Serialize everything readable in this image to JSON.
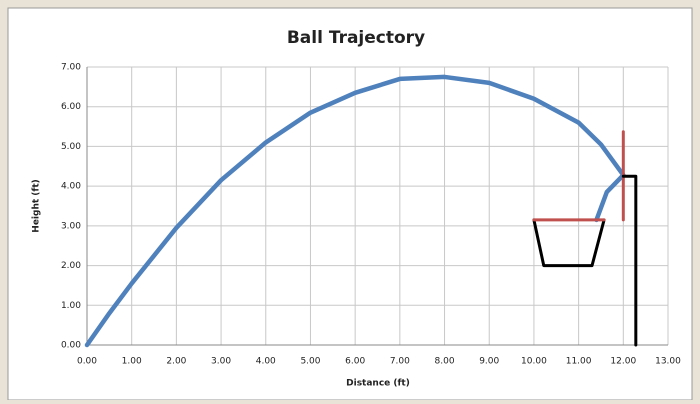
{
  "chart_data": {
    "type": "scatter",
    "title": "Ball Trajectory",
    "x_label": "Distance (ft)",
    "y_label": "Height (ft)",
    "xlim": [
      0,
      13
    ],
    "ylim": [
      0,
      7
    ],
    "grid": true,
    "xticks": [
      {
        "value": 0,
        "label": "0.00"
      },
      {
        "value": 1,
        "label": "1.00"
      },
      {
        "value": 2,
        "label": "2.00"
      },
      {
        "value": 3,
        "label": "3.00"
      },
      {
        "value": 4,
        "label": "4.00"
      },
      {
        "value": 5,
        "label": "5.00"
      },
      {
        "value": 6,
        "label": "6.00"
      },
      {
        "value": 7,
        "label": "7.00"
      },
      {
        "value": 8,
        "label": "8.00"
      },
      {
        "value": 9,
        "label": "9.00"
      },
      {
        "value": 10,
        "label": "10.00"
      },
      {
        "value": 11,
        "label": "11.00"
      },
      {
        "value": 12,
        "label": "12.00"
      },
      {
        "value": 13,
        "label": "13.00"
      }
    ],
    "yticks": [
      {
        "value": 0,
        "label": "0.00"
      },
      {
        "value": 1,
        "label": "1.00"
      },
      {
        "value": 2,
        "label": "2.00"
      },
      {
        "value": 3,
        "label": "3.00"
      },
      {
        "value": 4,
        "label": "4.00"
      },
      {
        "value": 5,
        "label": "5.00"
      },
      {
        "value": 6,
        "label": "6.00"
      },
      {
        "value": 7,
        "label": "7.00"
      }
    ],
    "series": [
      {
        "color": "#4f81bd",
        "x": [
          0,
          0.5,
          1,
          2,
          3,
          4,
          5,
          6,
          7,
          8,
          9,
          10,
          11,
          11.5,
          12,
          11.63,
          11.4
        ],
        "values": [
          0,
          0.8,
          1.55,
          2.95,
          4.15,
          5.1,
          5.85,
          6.35,
          6.7,
          6.75,
          6.6,
          6.2,
          5.6,
          5.05,
          4.28,
          3.85,
          3.15
        ]
      },
      {
        "color": "#000000",
        "x": [
          10,
          10.22,
          11.3,
          11.57
        ],
        "values": [
          3.15,
          2.0,
          2.0,
          3.15
        ]
      },
      {
        "color": "#c0504d",
        "x": [
          10,
          11.57
        ],
        "values": [
          3.15,
          3.15
        ]
      },
      {
        "color": "#c0504d",
        "x": [
          12,
          12
        ],
        "values": [
          3.15,
          5.37
        ]
      },
      {
        "color": "#000000",
        "x": [
          12,
          12.28,
          12.28
        ],
        "values": [
          4.25,
          4.25,
          0
        ]
      }
    ]
  }
}
